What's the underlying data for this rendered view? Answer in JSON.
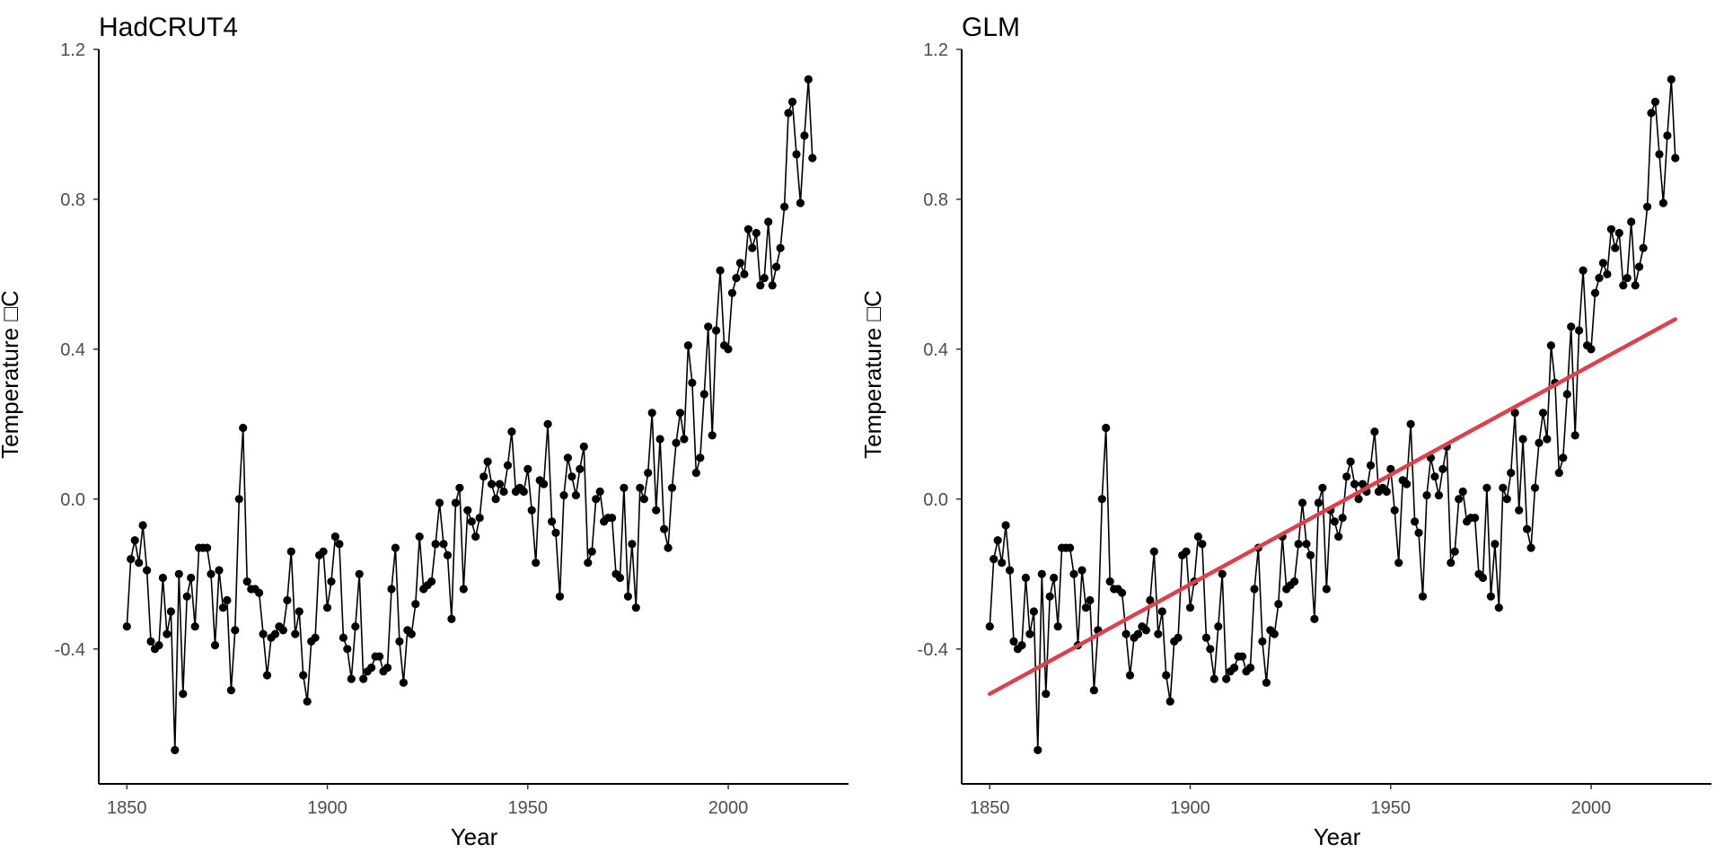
{
  "chart_data": [
    {
      "type": "line",
      "title": "HadCRUT4",
      "xlabel": "Year",
      "ylabel": "Temperature □C",
      "xlim": [
        1843,
        2030
      ],
      "ylim": [
        -0.76,
        1.2
      ],
      "xticks": [
        1850,
        1900,
        1950,
        2000
      ],
      "xtick_labels": [
        "1850",
        "1900",
        "1950",
        "2000"
      ],
      "yticks": [
        -0.4,
        0.0,
        0.4,
        0.8,
        1.2
      ],
      "ytick_labels": [
        "-0.4",
        "0.0",
        "0.4",
        "0.8",
        "1.2"
      ],
      "grid": false,
      "x": [
        1850,
        1851,
        1852,
        1853,
        1854,
        1855,
        1856,
        1857,
        1858,
        1859,
        1860,
        1861,
        1862,
        1863,
        1864,
        1865,
        1866,
        1867,
        1868,
        1869,
        1870,
        1871,
        1872,
        1873,
        1874,
        1875,
        1876,
        1877,
        1878,
        1879,
        1880,
        1881,
        1882,
        1883,
        1884,
        1885,
        1886,
        1887,
        1888,
        1889,
        1890,
        1891,
        1892,
        1893,
        1894,
        1895,
        1896,
        1897,
        1898,
        1899,
        1900,
        1901,
        1902,
        1903,
        1904,
        1905,
        1906,
        1907,
        1908,
        1909,
        1910,
        1911,
        1912,
        1913,
        1914,
        1915,
        1916,
        1917,
        1918,
        1919,
        1920,
        1921,
        1922,
        1923,
        1924,
        1925,
        1926,
        1927,
        1928,
        1929,
        1930,
        1931,
        1932,
        1933,
        1934,
        1935,
        1936,
        1937,
        1938,
        1939,
        1940,
        1941,
        1942,
        1943,
        1944,
        1945,
        1946,
        1947,
        1948,
        1949,
        1950,
        1951,
        1952,
        1953,
        1954,
        1955,
        1956,
        1957,
        1958,
        1959,
        1960,
        1961,
        1962,
        1963,
        1964,
        1965,
        1966,
        1967,
        1968,
        1969,
        1970,
        1971,
        1972,
        1973,
        1974,
        1975,
        1976,
        1977,
        1978,
        1979,
        1980,
        1981,
        1982,
        1983,
        1984,
        1985,
        1986,
        1987,
        1988,
        1989,
        1990,
        1991,
        1992,
        1993,
        1994,
        1995,
        1996,
        1997,
        1998,
        1999,
        2000,
        2001,
        2002,
        2003,
        2004,
        2005,
        2006,
        2007,
        2008,
        2009,
        2010,
        2011,
        2012,
        2013,
        2014,
        2015,
        2016,
        2017,
        2018,
        2019,
        2020,
        2021
      ],
      "y": [
        -0.34,
        -0.16,
        -0.11,
        -0.17,
        -0.07,
        -0.19,
        -0.38,
        -0.4,
        -0.39,
        -0.21,
        -0.36,
        -0.3,
        -0.67,
        -0.2,
        -0.52,
        -0.26,
        -0.21,
        -0.34,
        -0.13,
        -0.13,
        -0.13,
        -0.2,
        -0.39,
        -0.19,
        -0.29,
        -0.27,
        -0.51,
        -0.35,
        0.0,
        0.19,
        -0.22,
        -0.24,
        -0.24,
        -0.25,
        -0.36,
        -0.47,
        -0.37,
        -0.36,
        -0.34,
        -0.35,
        -0.27,
        -0.14,
        -0.36,
        -0.3,
        -0.47,
        -0.54,
        -0.38,
        -0.37,
        -0.15,
        -0.14,
        -0.29,
        -0.22,
        -0.1,
        -0.12,
        -0.37,
        -0.4,
        -0.48,
        -0.34,
        -0.2,
        -0.48,
        -0.46,
        -0.45,
        -0.42,
        -0.42,
        -0.46,
        -0.45,
        -0.24,
        -0.13,
        -0.38,
        -0.49,
        -0.35,
        -0.36,
        -0.28,
        -0.1,
        -0.24,
        -0.23,
        -0.22,
        -0.12,
        -0.01,
        -0.12,
        -0.15,
        -0.32,
        -0.01,
        0.03,
        -0.24,
        -0.03,
        -0.06,
        -0.1,
        -0.05,
        0.06,
        0.1,
        0.04,
        0.0,
        0.04,
        0.02,
        0.09,
        0.18,
        0.02,
        0.03,
        0.02,
        0.08,
        -0.03,
        -0.17,
        0.05,
        0.04,
        0.2,
        -0.06,
        -0.09,
        -0.26,
        0.01,
        0.11,
        0.06,
        0.01,
        0.08,
        0.14,
        -0.17,
        -0.14,
        0.0,
        0.02,
        -0.06,
        -0.05,
        -0.05,
        -0.2,
        -0.21,
        0.03,
        -0.26,
        -0.12,
        -0.29,
        0.03,
        0.0,
        0.07,
        0.23,
        -0.03,
        0.16,
        -0.08,
        -0.13,
        0.03,
        0.15,
        0.23,
        0.16,
        0.41,
        0.31,
        0.07,
        0.11,
        0.28,
        0.46,
        0.17,
        0.45,
        0.61,
        0.41,
        0.4,
        0.55,
        0.59,
        0.63,
        0.6,
        0.72,
        0.67,
        0.71,
        0.57,
        0.59,
        0.74,
        0.57,
        0.62,
        0.67,
        0.78,
        1.03,
        1.06,
        0.92,
        0.79,
        0.97,
        1.12,
        0.91
      ]
    },
    {
      "type": "line",
      "title": "GLM",
      "xlabel": "Year",
      "ylabel": "Temperature □C",
      "xlim": [
        1843,
        2030
      ],
      "ylim": [
        -0.76,
        1.2
      ],
      "xticks": [
        1850,
        1900,
        1950,
        2000
      ],
      "xtick_labels": [
        "1850",
        "1900",
        "1950",
        "2000"
      ],
      "yticks": [
        -0.4,
        0.0,
        0.4,
        0.8,
        1.2
      ],
      "ytick_labels": [
        "-0.4",
        "0.0",
        "0.4",
        "0.8",
        "1.2"
      ],
      "grid": false,
      "colors": {
        "fit": "#d9434f",
        "series": "#000000"
      },
      "fit_line": {
        "x": [
          1850,
          2021
        ],
        "y": [
          -0.52,
          0.48
        ]
      }
    }
  ]
}
